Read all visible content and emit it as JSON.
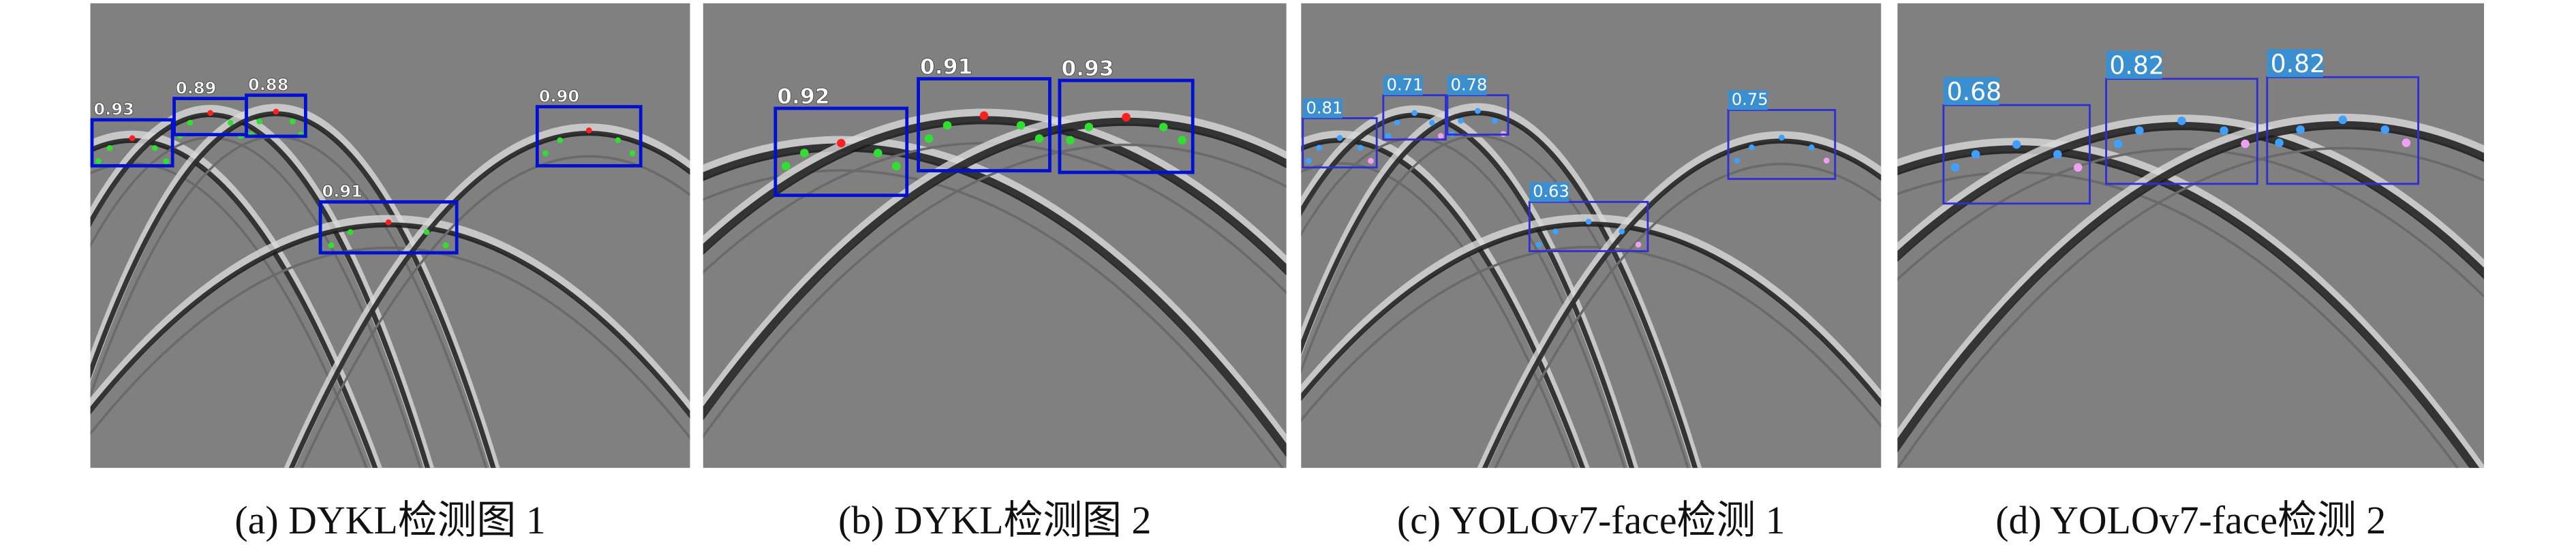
{
  "panels": [
    {
      "caption": "(a) DYKL检测图 1",
      "detections": [
        {
          "score": "0.93"
        },
        {
          "score": "0.89"
        },
        {
          "score": "0.88"
        },
        {
          "score": "0.91"
        },
        {
          "score": "0.90"
        }
      ]
    },
    {
      "caption": "(b) DYKL检测图 2",
      "detections": [
        {
          "score": "0.92"
        },
        {
          "score": "0.91"
        },
        {
          "score": "0.93"
        }
      ]
    },
    {
      "caption": "(c) YOLOv7-face检测 1",
      "detections": [
        {
          "score": "0.81"
        },
        {
          "score": "0.71"
        },
        {
          "score": "0.78"
        },
        {
          "score": "0.63"
        },
        {
          "score": "0.75"
        }
      ]
    },
    {
      "caption": "(d) YOLOv7-face检测 2",
      "detections": [
        {
          "score": "0.68"
        },
        {
          "score": "0.82"
        },
        {
          "score": "0.82"
        }
      ]
    }
  ]
}
